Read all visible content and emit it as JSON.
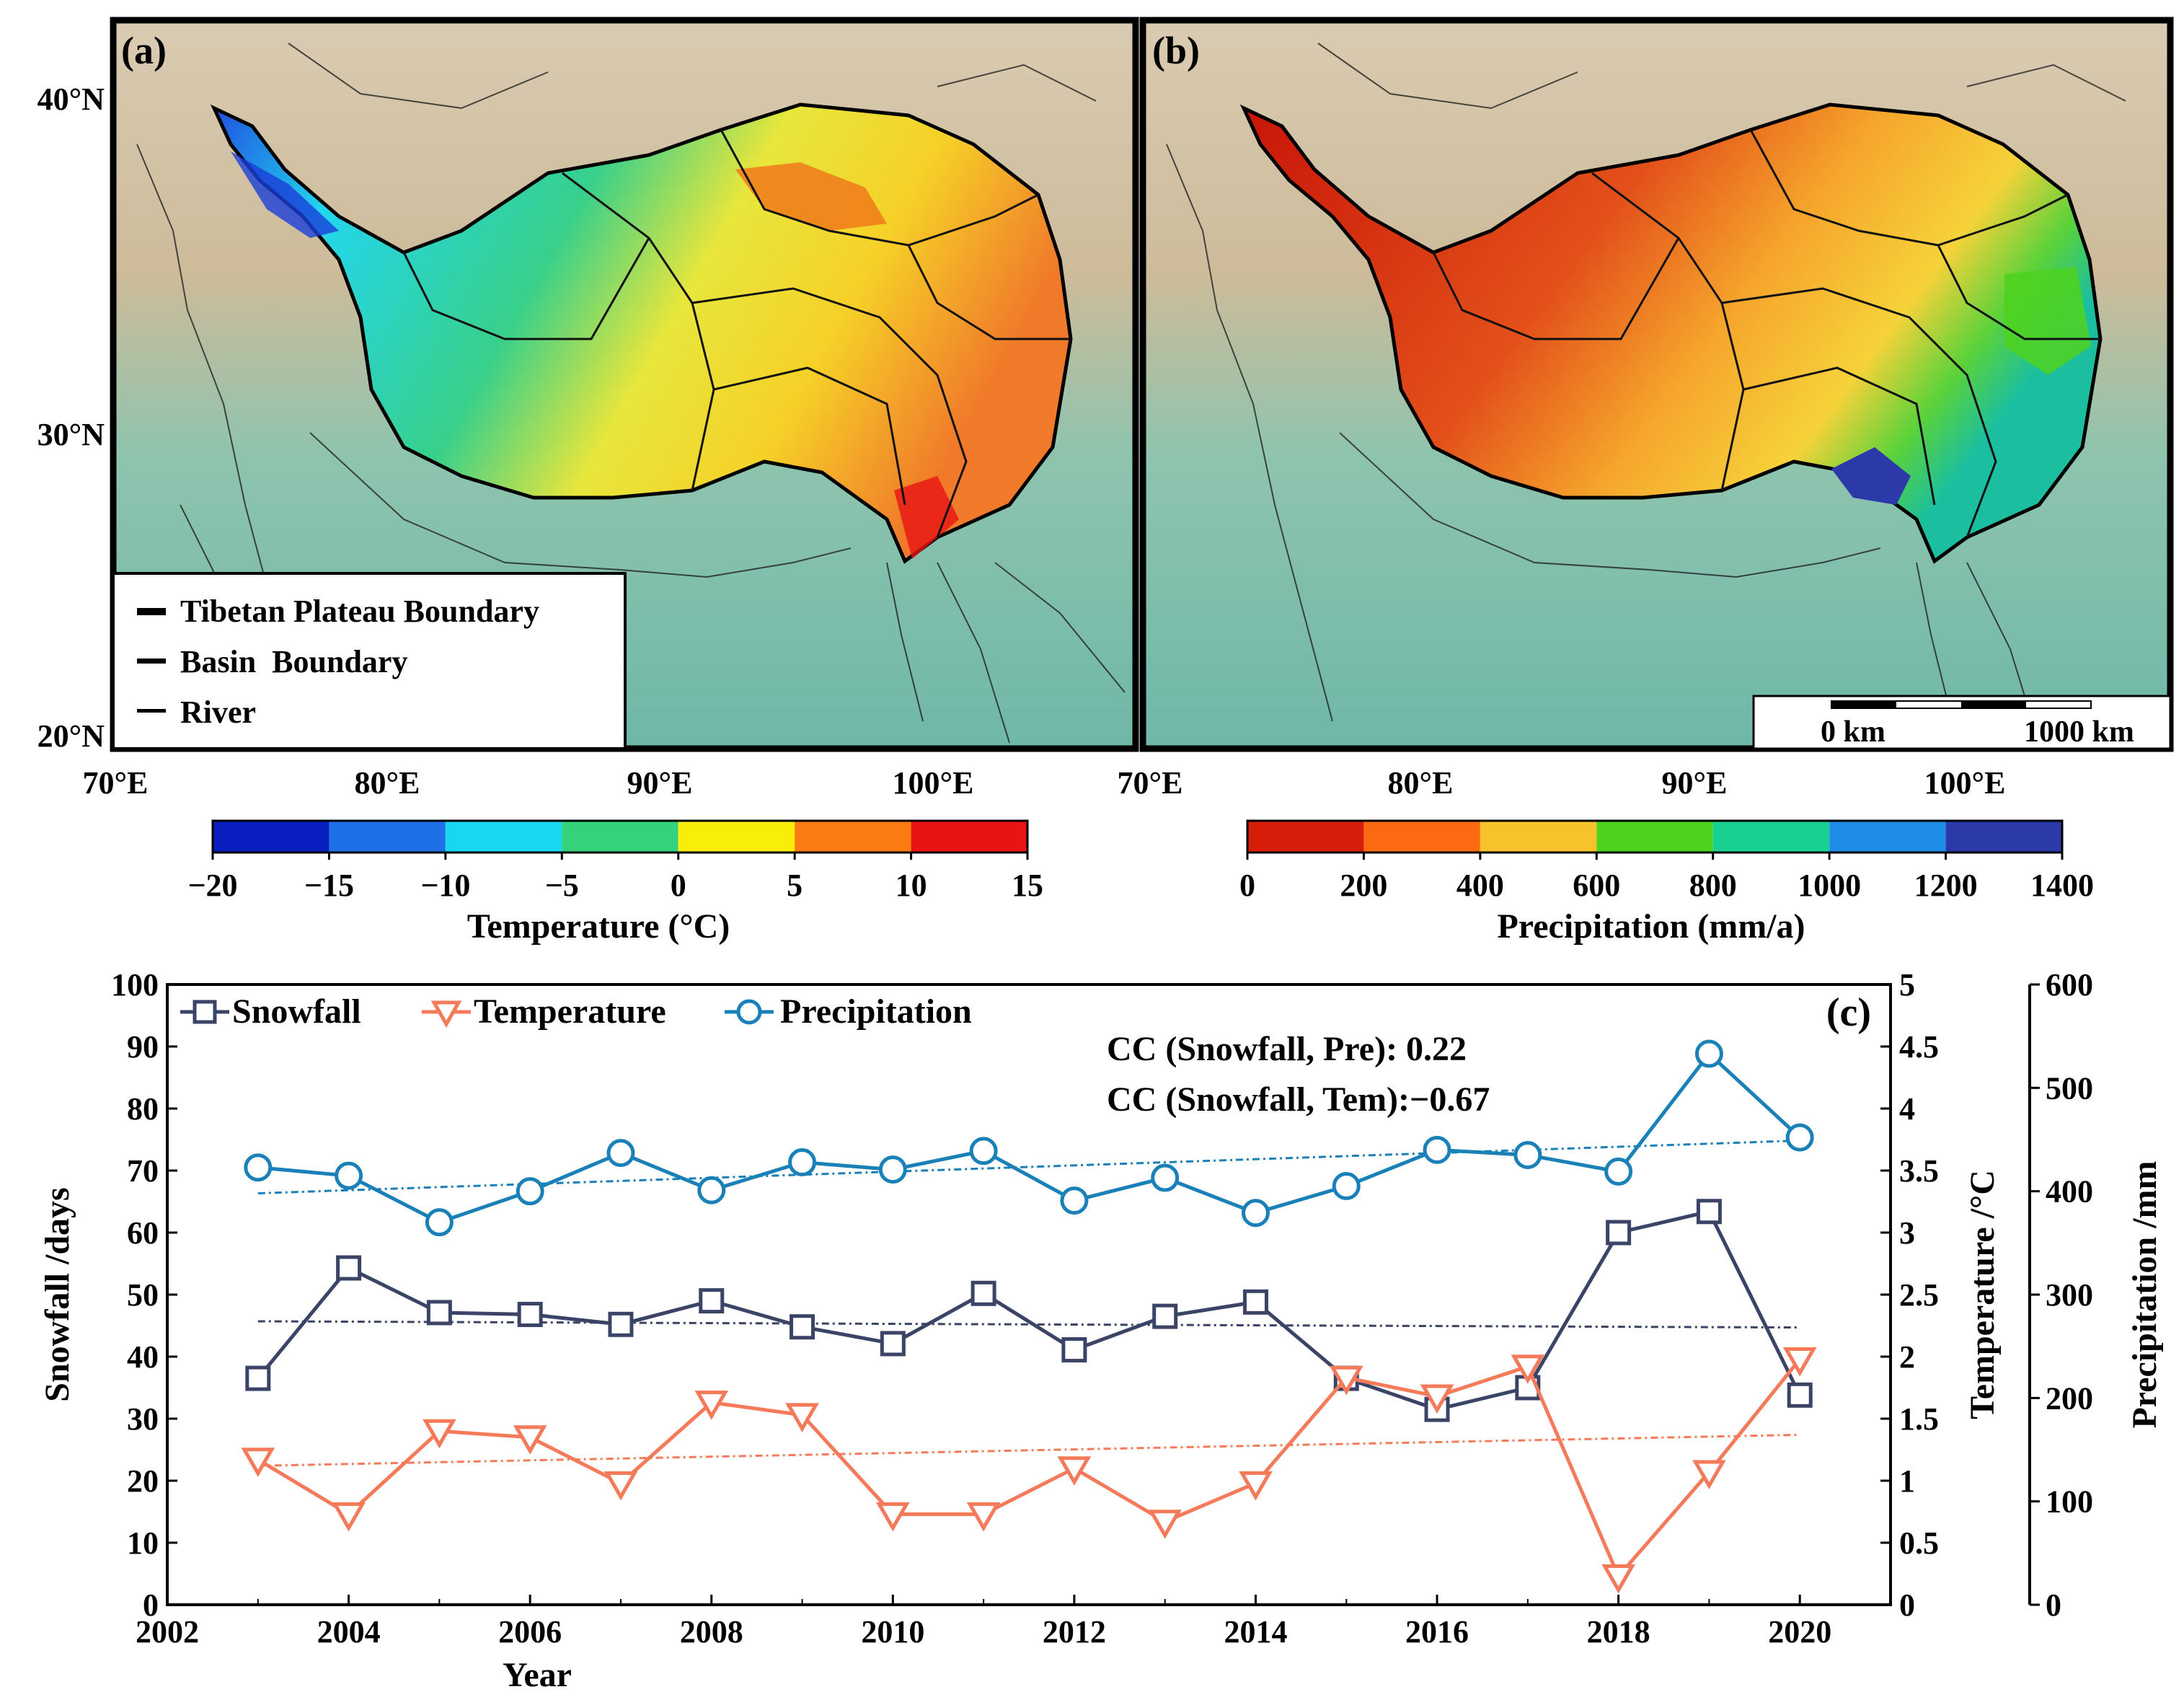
{
  "panel_a": {
    "label": "(a)",
    "lat_labels": [
      "40°N",
      "30°N",
      "20°N"
    ],
    "lon_labels": [
      "70°E",
      "80°E",
      "90°E",
      "100°E"
    ],
    "legend": {
      "items": [
        "Tibetan Plateau Boundary",
        "Basin  Boundary",
        "River"
      ]
    },
    "colorbar": {
      "ticks": [
        "−20",
        "−15",
        "−10",
        "−5",
        "0",
        "5",
        "10",
        "15"
      ],
      "colors": [
        "#0a1fc0",
        "#1f6fe8",
        "#17d8ee",
        "#34d27a",
        "#f8ee0a",
        "#fb7a12",
        "#e81414"
      ],
      "title": "Temperature (°C)"
    }
  },
  "panel_b": {
    "label": "(b)",
    "lon_labels": [
      "70°E",
      "80°E",
      "90°E",
      "100°E"
    ],
    "scale_bar": {
      "left": "0 km",
      "right": "1000 km"
    },
    "colorbar": {
      "ticks": [
        "0",
        "200",
        "400",
        "600",
        "800",
        "1000",
        "1200",
        "1400"
      ],
      "colors": [
        "#d61e0a",
        "#fb6a12",
        "#f8c22a",
        "#4ed21e",
        "#18d092",
        "#1f8de8",
        "#2b3aa8"
      ],
      "title": "Precipitation (mm/a)"
    }
  },
  "panel_c": {
    "label": "(c)"
  },
  "chart_data": {
    "type": "line",
    "xlabel": "Year",
    "x_ticks": [
      "2002",
      "2004",
      "2006",
      "2008",
      "2010",
      "2012",
      "2014",
      "2016",
      "2018",
      "2020"
    ],
    "xlim": [
      2002,
      2021
    ],
    "x": [
      2003,
      2004,
      2005,
      2006,
      2007,
      2008,
      2009,
      2010,
      2011,
      2012,
      2013,
      2014,
      2015,
      2016,
      2017,
      2018,
      2019,
      2020
    ],
    "series": [
      {
        "name": "Snowfall",
        "axis": "left",
        "color": "#3b4466",
        "marker": "square",
        "values": [
          36.5,
          54.3,
          47.1,
          46.8,
          45.2,
          49.0,
          44.8,
          42.1,
          50.2,
          41.1,
          46.5,
          48.8,
          36.5,
          31.5,
          35.0,
          60.0,
          63.4,
          33.8
        ],
        "trend": [
          45.7,
          44.7
        ]
      },
      {
        "name": "Temperature",
        "axis": "right1",
        "color": "#f47a59",
        "marker": "triangle-down",
        "values": [
          1.17,
          0.73,
          1.4,
          1.35,
          0.98,
          1.63,
          1.53,
          0.73,
          0.73,
          1.1,
          0.67,
          0.98,
          1.83,
          1.68,
          1.92,
          0.23,
          1.07,
          1.98
        ],
        "trend": [
          1.12,
          1.37
        ]
      },
      {
        "name": "Precipitation",
        "axis": "right2",
        "color": "#1a80b8",
        "marker": "circle",
        "values": [
          423,
          415,
          370,
          400,
          437,
          401,
          428,
          421,
          439,
          391,
          413,
          379,
          405,
          440,
          435,
          419,
          533,
          452
        ],
        "trend": [
          398,
          449
        ]
      }
    ],
    "y_left": {
      "label": "Snowfall /days",
      "lim": [
        0,
        100
      ],
      "ticks": [
        "0",
        "10",
        "20",
        "30",
        "40",
        "50",
        "60",
        "70",
        "80",
        "90",
        "100"
      ]
    },
    "y_right1": {
      "label": "Temperature /°C",
      "lim": [
        0,
        5
      ],
      "ticks": [
        "0",
        "0.5",
        "1",
        "1.5",
        "2",
        "2.5",
        "3",
        "3.5",
        "4",
        "4.5",
        "5"
      ]
    },
    "y_right2": {
      "label": "Precipitation /mm",
      "lim": [
        0,
        600
      ],
      "ticks": [
        "0",
        "100",
        "200",
        "300",
        "400",
        "500",
        "600"
      ]
    },
    "annotations": [
      "CC (Snowfall, Pre): 0.22",
      "CC (Snowfall, Tem):−0.67"
    ],
    "legend_position": "top-left"
  }
}
